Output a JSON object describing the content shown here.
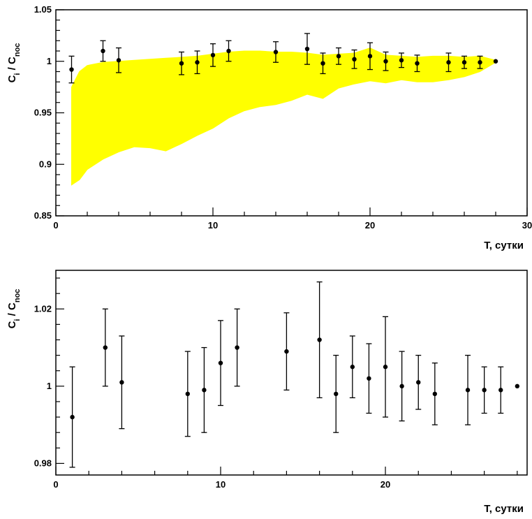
{
  "chart_data": [
    {
      "type": "scatter",
      "title": "",
      "xlabel": "T, сутки",
      "ylabel_main": "C",
      "ylabel_sub1": "i",
      "ylabel_sep": " / C",
      "ylabel_sub2": "noc",
      "xlim": [
        0,
        30
      ],
      "ylim": [
        0.85,
        1.05
      ],
      "xticks": [
        0,
        10,
        20,
        30
      ],
      "xtick_labels": [
        "0",
        "10",
        "20",
        "30"
      ],
      "yticks": [
        0.85,
        0.9,
        0.95,
        1.0,
        1.05
      ],
      "ytick_labels": [
        "0.85",
        "0.9",
        "0.95",
        "1",
        "1.05"
      ],
      "grid": false,
      "band": {
        "color": "#ffff00",
        "x": [
          1,
          1.5,
          2,
          3,
          4,
          5,
          6,
          7,
          8,
          9,
          10,
          11,
          12,
          13,
          14,
          15,
          16,
          17,
          18,
          19,
          20,
          21,
          22,
          23,
          24,
          25,
          26,
          27,
          28
        ],
        "upper": [
          0.975,
          0.99,
          0.996,
          0.999,
          1.0,
          1.001,
          1.002,
          1.003,
          1.004,
          1.005,
          1.007,
          1.009,
          1.01,
          1.01,
          1.009,
          1.009,
          1.008,
          1.006,
          1.007,
          1.008,
          1.013,
          1.006,
          1.005,
          1.004,
          1.005,
          1.005,
          1.004,
          1.005,
          1.001
        ],
        "lower": [
          0.88,
          0.885,
          0.895,
          0.905,
          0.912,
          0.917,
          0.916,
          0.913,
          0.92,
          0.928,
          0.935,
          0.945,
          0.952,
          0.956,
          0.958,
          0.962,
          0.968,
          0.964,
          0.974,
          0.978,
          0.981,
          0.979,
          0.982,
          0.98,
          0.98,
          0.982,
          0.985,
          0.99,
          0.999
        ]
      },
      "points": [
        {
          "x": 1,
          "y": 0.992,
          "err": 0.013
        },
        {
          "x": 3,
          "y": 1.01,
          "err": 0.01
        },
        {
          "x": 4,
          "y": 1.001,
          "err": 0.012
        },
        {
          "x": 8,
          "y": 0.998,
          "err": 0.011
        },
        {
          "x": 9,
          "y": 0.999,
          "err": 0.011
        },
        {
          "x": 10,
          "y": 1.006,
          "err": 0.011
        },
        {
          "x": 11,
          "y": 1.01,
          "err": 0.01
        },
        {
          "x": 14,
          "y": 1.009,
          "err": 0.01
        },
        {
          "x": 16,
          "y": 1.012,
          "err": 0.015
        },
        {
          "x": 17,
          "y": 0.998,
          "err": 0.01
        },
        {
          "x": 18,
          "y": 1.005,
          "err": 0.008
        },
        {
          "x": 19,
          "y": 1.002,
          "err": 0.009
        },
        {
          "x": 20,
          "y": 1.005,
          "err": 0.013
        },
        {
          "x": 21,
          "y": 1.0,
          "err": 0.009
        },
        {
          "x": 22,
          "y": 1.001,
          "err": 0.007
        },
        {
          "x": 23,
          "y": 0.998,
          "err": 0.008
        },
        {
          "x": 25,
          "y": 0.999,
          "err": 0.009
        },
        {
          "x": 26,
          "y": 0.999,
          "err": 0.006
        },
        {
          "x": 27,
          "y": 0.999,
          "err": 0.006
        },
        {
          "x": 28,
          "y": 1.0,
          "err": 0
        }
      ]
    },
    {
      "type": "scatter",
      "title": "",
      "xlabel": "T, сутки",
      "ylabel_main": "C",
      "ylabel_sub1": "i",
      "ylabel_sep": " / C",
      "ylabel_sub2": "noc",
      "xlim": [
        0,
        28.6
      ],
      "ylim": [
        0.977,
        1.03
      ],
      "xticks": [
        0,
        10,
        20
      ],
      "xtick_labels": [
        "0",
        "10",
        "20"
      ],
      "yticks": [
        0.98,
        1.0,
        1.02
      ],
      "ytick_labels": [
        "0.98",
        "1",
        "1.02"
      ],
      "grid": false,
      "points": [
        {
          "x": 1,
          "y": 0.992,
          "err": 0.013
        },
        {
          "x": 3,
          "y": 1.01,
          "err": 0.01
        },
        {
          "x": 4,
          "y": 1.001,
          "err": 0.012
        },
        {
          "x": 8,
          "y": 0.998,
          "err": 0.011
        },
        {
          "x": 9,
          "y": 0.999,
          "err": 0.011
        },
        {
          "x": 10,
          "y": 1.006,
          "err": 0.011
        },
        {
          "x": 11,
          "y": 1.01,
          "err": 0.01
        },
        {
          "x": 14,
          "y": 1.009,
          "err": 0.01
        },
        {
          "x": 16,
          "y": 1.012,
          "err": 0.015
        },
        {
          "x": 17,
          "y": 0.998,
          "err": 0.01
        },
        {
          "x": 18,
          "y": 1.005,
          "err": 0.008
        },
        {
          "x": 19,
          "y": 1.002,
          "err": 0.009
        },
        {
          "x": 20,
          "y": 1.005,
          "err": 0.013
        },
        {
          "x": 21,
          "y": 1.0,
          "err": 0.009
        },
        {
          "x": 22,
          "y": 1.001,
          "err": 0.007
        },
        {
          "x": 23,
          "y": 0.998,
          "err": 0.008
        },
        {
          "x": 25,
          "y": 0.999,
          "err": 0.009
        },
        {
          "x": 26,
          "y": 0.999,
          "err": 0.006
        },
        {
          "x": 27,
          "y": 0.999,
          "err": 0.006
        },
        {
          "x": 28,
          "y": 1.0,
          "err": 0
        }
      ]
    }
  ]
}
